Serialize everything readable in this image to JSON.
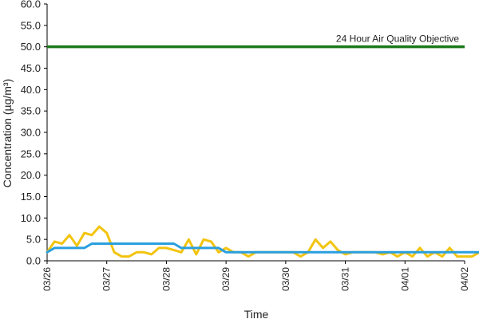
{
  "chart_data": {
    "type": "line",
    "xlabel": "Time",
    "ylabel": "Concentration (µg/m³)",
    "ylim": [
      0,
      60
    ],
    "y_ticks": [
      "0.0",
      "5.0",
      "10.0",
      "15.0",
      "20.0",
      "25.0",
      "30.0",
      "35.0",
      "40.0",
      "45.0",
      "50.0",
      "55.0",
      "60.0"
    ],
    "x_tick_labels": [
      "03/26",
      "03/27",
      "03/28",
      "03/29",
      "03/30",
      "03/31",
      "04/01",
      "04/02"
    ],
    "x_start": "03/26",
    "x_end": "04/02",
    "grid": false,
    "series": [
      {
        "color": "#f2c40f",
        "step_hours": 3,
        "values": [
          2.0,
          4.5,
          4.0,
          6.0,
          3.5,
          6.5,
          6.0,
          8.0,
          6.5,
          2.0,
          1.0,
          1.0,
          2.0,
          2.0,
          1.5,
          3.0,
          3.0,
          2.5,
          2.0,
          5.0,
          1.5,
          5.0,
          4.5,
          2.0,
          3.0,
          2.0,
          2.0,
          1.0,
          2.0,
          2.0,
          2.0,
          2.0,
          2.0,
          2.0,
          1.0,
          2.0,
          5.0,
          3.0,
          4.5,
          2.5,
          1.5,
          2.0,
          2.0,
          2.0,
          2.0,
          1.5,
          2.0,
          1.0,
          2.0,
          1.0,
          3.0,
          1.0,
          2.0,
          1.0,
          3.0,
          1.0,
          1.0,
          1.0,
          2.0,
          2.0,
          2.0,
          1.5,
          1.0,
          2.5,
          1.0,
          1.0,
          1.0,
          3.0,
          1.0,
          1.0,
          1.0,
          1.0,
          1.0,
          2.0,
          2.0,
          4.0,
          2.5,
          1.0,
          1.0,
          1.0,
          1.0,
          1.0,
          1.0,
          1.0,
          2.0,
          2.0,
          5.0,
          5.0,
          2.0,
          2.0,
          2.0,
          2.0,
          2.0,
          2.0,
          1.5,
          2.5,
          2.0,
          1.5,
          1.0,
          2.0,
          4.0,
          7.0,
          7.0,
          6.0,
          7.5,
          7.0,
          5.0,
          5.0,
          6.5,
          7.5,
          5.0,
          2.0,
          2.0,
          1.5,
          1.0,
          2.0,
          4.0,
          3.0,
          2.0,
          1.5,
          2.0,
          3.0,
          2.0,
          1.0,
          1.5,
          1.0,
          1.0,
          1.0,
          1.0,
          1.0,
          1.0,
          1.0,
          1.0,
          1.0,
          2.0,
          1.0,
          1.0,
          1.0,
          1.0,
          1.0,
          1.0,
          1.5,
          2.0,
          8.0,
          7.0,
          5.5,
          5.0,
          1.0
        ]
      },
      {
        "color": "#2a9fdf",
        "step_hours": 3,
        "values": [
          2.0,
          3.0,
          3.0,
          3.0,
          3.0,
          3.0,
          4.0,
          4.0,
          4.0,
          4.0,
          4.0,
          4.0,
          4.0,
          4.0,
          4.0,
          4.0,
          4.0,
          4.0,
          3.0,
          3.0,
          3.0,
          3.0,
          3.0,
          3.0,
          2.0,
          2.0,
          2.0,
          2.0,
          2.0,
          2.0,
          2.0,
          2.0,
          2.0,
          2.0,
          2.0,
          2.0,
          2.0,
          2.0,
          2.0,
          2.0,
          2.0,
          2.0,
          2.0,
          2.0,
          2.0,
          2.0,
          2.0,
          2.0,
          2.0,
          2.0,
          2.0,
          2.0,
          2.0,
          2.0,
          2.0,
          2.0,
          2.0,
          2.0,
          2.0,
          2.0,
          2.0,
          2.0,
          2.0,
          2.0,
          2.0,
          2.0,
          2.0,
          2.0,
          1.0,
          1.0,
          1.0,
          1.0,
          1.0,
          1.0,
          1.0,
          1.0,
          1.0,
          1.0,
          1.0,
          1.0,
          1.0,
          1.0,
          1.0,
          1.0,
          1.0,
          1.0,
          1.0,
          1.0,
          1.0,
          1.0,
          1.0,
          1.0,
          1.0,
          1.0,
          1.0,
          1.0,
          1.0,
          1.0,
          1.0,
          1.0,
          1.0,
          1.0,
          1.0,
          1.0,
          1.0,
          1.0,
          1.0,
          1.0,
          1.0,
          1.0,
          1.0,
          1.0,
          1.0,
          1.0,
          1.0,
          1.0,
          1.0,
          1.0,
          1.0,
          1.0,
          1.0,
          1.0,
          1.0,
          1.0,
          1.0,
          1.0,
          1.0,
          1.0,
          2.0,
          2.0,
          2.0,
          2.0,
          2.0,
          2.0,
          2.0,
          2.0,
          2.0,
          2.0,
          2.0,
          2.0,
          2.0,
          2.0,
          2.0,
          2.0,
          2.0,
          2.0,
          2.0,
          2.0,
          2.0,
          3.0,
          3.0,
          3.0,
          3.0,
          3.0,
          4.0,
          4.0,
          4.0,
          4.0,
          4.0,
          4.0,
          4.0,
          4.0,
          4.0,
          4.0,
          4.0,
          4.0,
          4.0,
          4.0,
          5.0,
          5.0,
          5.0,
          5.0,
          5.0,
          4.0,
          4.0,
          4.0,
          3.0,
          3.0,
          3.0,
          3.0,
          2.0,
          2.0,
          2.0,
          2.0,
          2.0,
          2.0
        ]
      }
    ],
    "reference_lines": [
      {
        "label": "24 Hour Air Quality Objective",
        "value": 50.0,
        "color": "#1a7a1a"
      }
    ]
  }
}
